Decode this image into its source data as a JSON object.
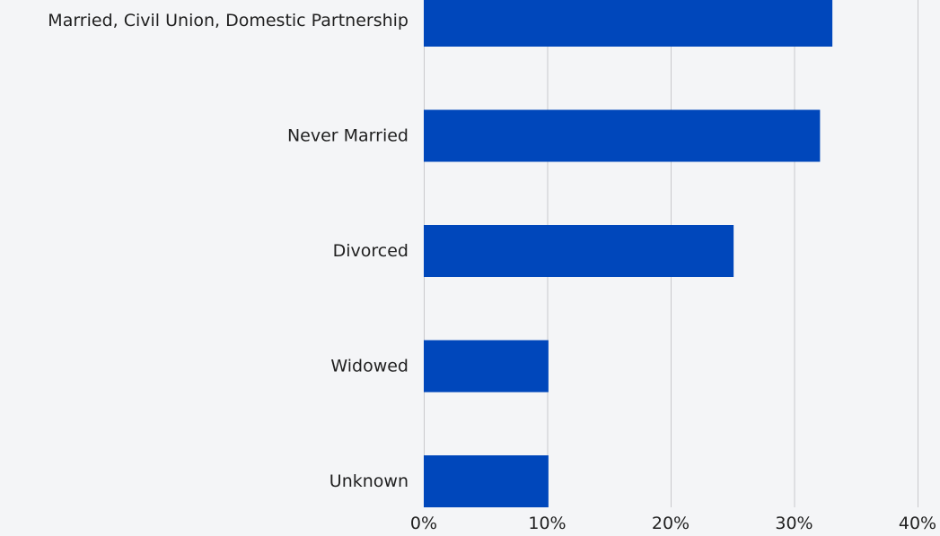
{
  "chart_data": {
    "type": "bar",
    "orientation": "horizontal",
    "categories": [
      "Married, Civil Union, Domestic Partnership",
      "Never Married",
      "Divorced",
      "Widowed",
      "Unknown"
    ],
    "values": [
      33.1,
      32.1,
      25.1,
      10.1,
      10.1
    ],
    "xlim": [
      0,
      40
    ],
    "x_ticks": [
      0,
      10,
      20,
      30,
      40
    ],
    "x_tick_labels": [
      "0%",
      "10%",
      "20%",
      "30%",
      "40%"
    ],
    "title": "",
    "xlabel": "",
    "ylabel": "",
    "grid": true,
    "bar_color": "#0047bb",
    "background_color": "#f4f5f7"
  }
}
